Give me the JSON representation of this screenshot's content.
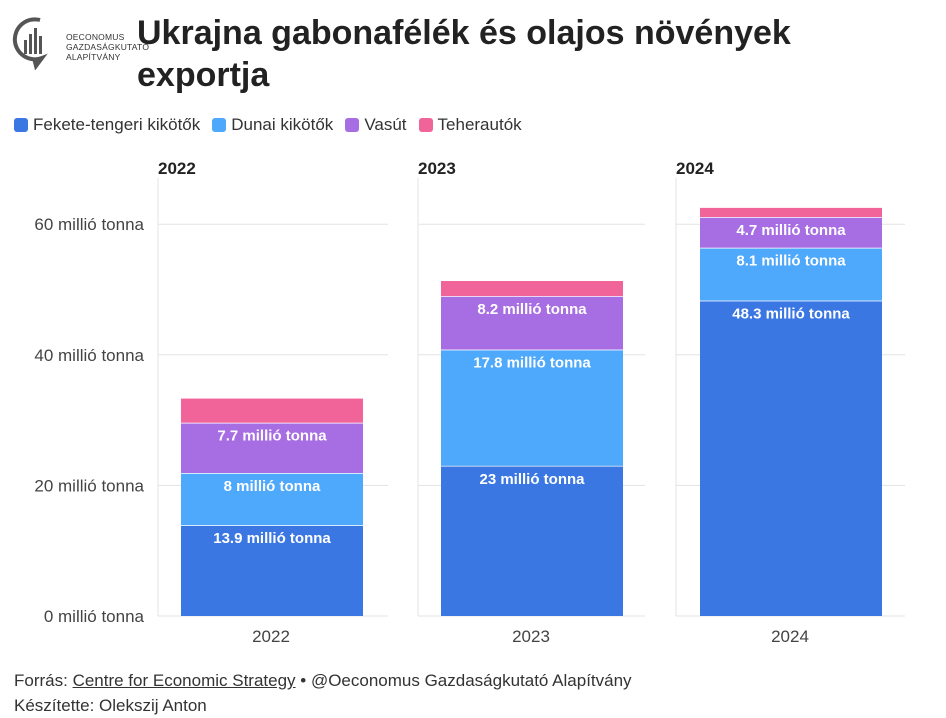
{
  "logo": {
    "name": "Oeconomus Gazdaságkutató Alapítvány",
    "text_lines": [
      "OECONOMUS",
      "GAZDASÁGKUTATÓ",
      "ALAPÍTVÁNY"
    ]
  },
  "title": "Ukrajna gabonafélék és olajos növények exportja",
  "legend": [
    {
      "label": "Fekete-tengeri kikötők",
      "color": "#3b77e3"
    },
    {
      "label": "Dunai kikötők",
      "color": "#4ea8fb"
    },
    {
      "label": "Vasút",
      "color": "#a76de3"
    },
    {
      "label": "Teherautók",
      "color": "#f0649a"
    }
  ],
  "chart_data": {
    "type": "bar",
    "stacked": true,
    "panels": [
      "2022",
      "2023",
      "2024"
    ],
    "categories": [
      "2022",
      "2023",
      "2024"
    ],
    "series": [
      {
        "name": "Fekete-tengeri kikötők",
        "values": [
          13.9,
          23,
          48.3
        ],
        "labels": [
          "13.9 millió tonna",
          "23 millió tonna",
          "48.3 millió tonna"
        ],
        "color": "#3b77e3"
      },
      {
        "name": "Dunai kikötők",
        "values": [
          8,
          17.8,
          8.1
        ],
        "labels": [
          "8 millió tonna",
          "17.8 millió tonna",
          "8.1 millió tonna"
        ],
        "color": "#4ea8fb"
      },
      {
        "name": "Vasút",
        "values": [
          7.7,
          8.2,
          4.7
        ],
        "labels": [
          "7.7 millió tonna",
          "8.2 millió tonna",
          "4.7 millió tonna"
        ],
        "color": "#a76de3"
      },
      {
        "name": "Teherautók",
        "values": [
          3.7,
          2.3,
          1.4
        ],
        "labels": [
          "",
          "",
          ""
        ],
        "color": "#f0649a"
      }
    ],
    "y_ticks": [
      0,
      20,
      40,
      60
    ],
    "y_tick_labels": [
      "0 millió tonna",
      "20 millió tonna",
      "40 millió tonna",
      "60 millió tonna"
    ],
    "ylim": [
      0,
      64
    ],
    "grid": true,
    "legend_position": "top-left"
  },
  "footer": {
    "source_prefix": "Forrás: ",
    "source_link": "Centre for Economic Strategy",
    "source_suffix": " • @Oeconomus Gazdaságkutató Alapítvány",
    "author": "Készítette: Olekszij Anton"
  }
}
